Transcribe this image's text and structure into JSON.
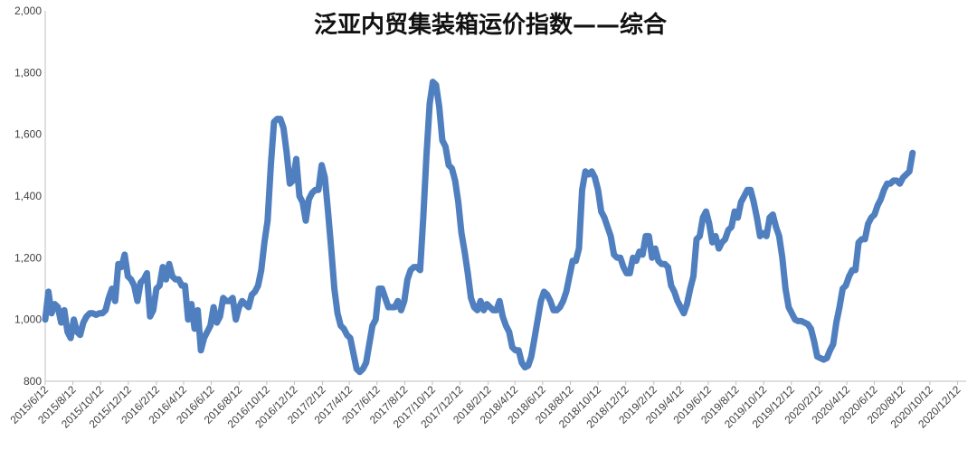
{
  "chart_data": {
    "type": "line",
    "title": "泛亚内贸集装箱运价指数——综合",
    "ylim": [
      800,
      2000
    ],
    "y_ticks": [
      "2,000",
      "1,800",
      "1,600",
      "1,400",
      "1,200",
      "1,000",
      "800"
    ],
    "y_tick_values": [
      2000,
      1800,
      1600,
      1400,
      1200,
      1000,
      800
    ],
    "x_tick_labels": [
      "2015/6/12",
      "2015/8/12",
      "2015/10/12",
      "2015/12/12",
      "2016/2/12",
      "2016/4/12",
      "2016/6/12",
      "2016/8/12",
      "2016/10/12",
      "2016/12/12",
      "2017/2/12",
      "2017/4/12",
      "2017/6/12",
      "2017/8/12",
      "2017/10/12",
      "2017/12/12",
      "2018/2/12",
      "2018/4/12",
      "2018/6/12",
      "2018/8/12",
      "2018/10/12",
      "2018/12/12",
      "2019/2/12",
      "2019/4/12",
      "2019/6/12",
      "2019/8/12",
      "2019/10/12",
      "2019/12/12",
      "2020/2/12",
      "2020/4/12",
      "2020/6/12",
      "2020/8/12",
      "2020/10/12",
      "2020/12/12"
    ],
    "x_start": "2015-06-12",
    "x_end": "2020-12-31",
    "grid": false,
    "legend": "none",
    "series": [
      {
        "color": "#4f7fbf",
        "points": [
          [
            "2015-06-12",
            1000
          ],
          [
            "2015-06-19",
            1090
          ],
          [
            "2015-06-26",
            1020
          ],
          [
            "2015-07-03",
            1050
          ],
          [
            "2015-07-10",
            1040
          ],
          [
            "2015-07-17",
            990
          ],
          [
            "2015-07-24",
            1030
          ],
          [
            "2015-07-31",
            960
          ],
          [
            "2015-08-07",
            940
          ],
          [
            "2015-08-14",
            1000
          ],
          [
            "2015-08-21",
            960
          ],
          [
            "2015-08-28",
            950
          ],
          [
            "2015-09-04",
            990
          ],
          [
            "2015-09-11",
            1010
          ],
          [
            "2015-09-18",
            1020
          ],
          [
            "2015-09-25",
            1020
          ],
          [
            "2015-10-02",
            1015
          ],
          [
            "2015-10-09",
            1020
          ],
          [
            "2015-10-16",
            1020
          ],
          [
            "2015-10-23",
            1030
          ],
          [
            "2015-10-30",
            1070
          ],
          [
            "2015-11-06",
            1100
          ],
          [
            "2015-11-13",
            1060
          ],
          [
            "2015-11-20",
            1180
          ],
          [
            "2015-11-27",
            1170
          ],
          [
            "2015-12-04",
            1210
          ],
          [
            "2015-12-11",
            1140
          ],
          [
            "2015-12-18",
            1130
          ],
          [
            "2015-12-25",
            1110
          ],
          [
            "2016-01-01",
            1060
          ],
          [
            "2016-01-08",
            1120
          ],
          [
            "2016-01-15",
            1130
          ],
          [
            "2016-01-22",
            1150
          ],
          [
            "2016-01-29",
            1010
          ],
          [
            "2016-02-05",
            1030
          ],
          [
            "2016-02-12",
            1100
          ],
          [
            "2016-02-19",
            1110
          ],
          [
            "2016-02-26",
            1170
          ],
          [
            "2016-03-04",
            1130
          ],
          [
            "2016-03-11",
            1180
          ],
          [
            "2016-03-18",
            1140
          ],
          [
            "2016-03-25",
            1130
          ],
          [
            "2016-04-01",
            1130
          ],
          [
            "2016-04-08",
            1110
          ],
          [
            "2016-04-15",
            1110
          ],
          [
            "2016-04-22",
            1000
          ],
          [
            "2016-04-29",
            1050
          ],
          [
            "2016-05-06",
            970
          ],
          [
            "2016-05-13",
            1030
          ],
          [
            "2016-05-20",
            900
          ],
          [
            "2016-05-27",
            940
          ],
          [
            "2016-06-03",
            960
          ],
          [
            "2016-06-10",
            980
          ],
          [
            "2016-06-17",
            1040
          ],
          [
            "2016-06-24",
            990
          ],
          [
            "2016-07-01",
            1010
          ],
          [
            "2016-07-08",
            1070
          ],
          [
            "2016-07-15",
            1060
          ],
          [
            "2016-07-22",
            1060
          ],
          [
            "2016-07-29",
            1070
          ],
          [
            "2016-08-05",
            1000
          ],
          [
            "2016-08-12",
            1040
          ],
          [
            "2016-08-19",
            1060
          ],
          [
            "2016-08-26",
            1050
          ],
          [
            "2016-09-02",
            1040
          ],
          [
            "2016-09-09",
            1080
          ],
          [
            "2016-09-16",
            1090
          ],
          [
            "2016-09-23",
            1110
          ],
          [
            "2016-09-30",
            1160
          ],
          [
            "2016-10-07",
            1250
          ],
          [
            "2016-10-14",
            1320
          ],
          [
            "2016-10-21",
            1500
          ],
          [
            "2016-10-28",
            1640
          ],
          [
            "2016-11-04",
            1650
          ],
          [
            "2016-11-11",
            1650
          ],
          [
            "2016-11-18",
            1620
          ],
          [
            "2016-11-25",
            1540
          ],
          [
            "2016-12-02",
            1440
          ],
          [
            "2016-12-09",
            1450
          ],
          [
            "2016-12-16",
            1520
          ],
          [
            "2016-12-23",
            1400
          ],
          [
            "2016-12-30",
            1380
          ],
          [
            "2017-01-06",
            1320
          ],
          [
            "2017-01-13",
            1390
          ],
          [
            "2017-01-20",
            1410
          ],
          [
            "2017-01-27",
            1420
          ],
          [
            "2017-02-03",
            1420
          ],
          [
            "2017-02-10",
            1500
          ],
          [
            "2017-02-17",
            1460
          ],
          [
            "2017-02-24",
            1350
          ],
          [
            "2017-03-03",
            1230
          ],
          [
            "2017-03-10",
            1100
          ],
          [
            "2017-03-17",
            1020
          ],
          [
            "2017-03-24",
            980
          ],
          [
            "2017-03-31",
            970
          ],
          [
            "2017-04-07",
            950
          ],
          [
            "2017-04-14",
            940
          ],
          [
            "2017-04-21",
            890
          ],
          [
            "2017-04-28",
            840
          ],
          [
            "2017-05-05",
            830
          ],
          [
            "2017-05-12",
            840
          ],
          [
            "2017-05-19",
            860
          ],
          [
            "2017-05-26",
            920
          ],
          [
            "2017-06-02",
            980
          ],
          [
            "2017-06-09",
            1000
          ],
          [
            "2017-06-16",
            1100
          ],
          [
            "2017-06-23",
            1100
          ],
          [
            "2017-06-30",
            1070
          ],
          [
            "2017-07-07",
            1040
          ],
          [
            "2017-07-14",
            1040
          ],
          [
            "2017-07-21",
            1040
          ],
          [
            "2017-07-28",
            1060
          ],
          [
            "2017-08-04",
            1030
          ],
          [
            "2017-08-11",
            1060
          ],
          [
            "2017-08-18",
            1130
          ],
          [
            "2017-08-25",
            1160
          ],
          [
            "2017-09-01",
            1170
          ],
          [
            "2017-09-08",
            1170
          ],
          [
            "2017-09-15",
            1160
          ],
          [
            "2017-09-22",
            1330
          ],
          [
            "2017-09-29",
            1530
          ],
          [
            "2017-10-06",
            1700
          ],
          [
            "2017-10-13",
            1770
          ],
          [
            "2017-10-20",
            1760
          ],
          [
            "2017-10-27",
            1690
          ],
          [
            "2017-11-03",
            1580
          ],
          [
            "2017-11-10",
            1560
          ],
          [
            "2017-11-17",
            1500
          ],
          [
            "2017-11-24",
            1490
          ],
          [
            "2017-12-01",
            1450
          ],
          [
            "2017-12-08",
            1380
          ],
          [
            "2017-12-15",
            1280
          ],
          [
            "2017-12-22",
            1220
          ],
          [
            "2017-12-29",
            1150
          ],
          [
            "2018-01-05",
            1070
          ],
          [
            "2018-01-12",
            1040
          ],
          [
            "2018-01-19",
            1030
          ],
          [
            "2018-01-26",
            1060
          ],
          [
            "2018-02-02",
            1030
          ],
          [
            "2018-02-09",
            1050
          ],
          [
            "2018-02-16",
            1040
          ],
          [
            "2018-02-23",
            1030
          ],
          [
            "2018-03-02",
            1030
          ],
          [
            "2018-03-09",
            1060
          ],
          [
            "2018-03-16",
            1010
          ],
          [
            "2018-03-23",
            980
          ],
          [
            "2018-03-30",
            960
          ],
          [
            "2018-04-06",
            910
          ],
          [
            "2018-04-13",
            900
          ],
          [
            "2018-04-20",
            900
          ],
          [
            "2018-04-27",
            860
          ],
          [
            "2018-05-04",
            845
          ],
          [
            "2018-05-11",
            850
          ],
          [
            "2018-05-18",
            880
          ],
          [
            "2018-05-25",
            940
          ],
          [
            "2018-06-01",
            1000
          ],
          [
            "2018-06-08",
            1060
          ],
          [
            "2018-06-15",
            1090
          ],
          [
            "2018-06-22",
            1080
          ],
          [
            "2018-06-29",
            1060
          ],
          [
            "2018-07-06",
            1030
          ],
          [
            "2018-07-13",
            1030
          ],
          [
            "2018-07-20",
            1040
          ],
          [
            "2018-07-27",
            1060
          ],
          [
            "2018-08-03",
            1090
          ],
          [
            "2018-08-10",
            1140
          ],
          [
            "2018-08-17",
            1190
          ],
          [
            "2018-08-24",
            1190
          ],
          [
            "2018-08-31",
            1230
          ],
          [
            "2018-09-07",
            1420
          ],
          [
            "2018-09-14",
            1480
          ],
          [
            "2018-09-21",
            1470
          ],
          [
            "2018-09-28",
            1480
          ],
          [
            "2018-10-05",
            1460
          ],
          [
            "2018-10-12",
            1420
          ],
          [
            "2018-10-19",
            1350
          ],
          [
            "2018-10-26",
            1330
          ],
          [
            "2018-11-02",
            1300
          ],
          [
            "2018-11-09",
            1270
          ],
          [
            "2018-11-16",
            1210
          ],
          [
            "2018-11-23",
            1200
          ],
          [
            "2018-11-30",
            1200
          ],
          [
            "2018-12-07",
            1170
          ],
          [
            "2018-12-14",
            1150
          ],
          [
            "2018-12-21",
            1150
          ],
          [
            "2018-12-28",
            1200
          ],
          [
            "2019-01-04",
            1190
          ],
          [
            "2019-01-11",
            1220
          ],
          [
            "2019-01-18",
            1210
          ],
          [
            "2019-01-25",
            1270
          ],
          [
            "2019-02-01",
            1270
          ],
          [
            "2019-02-08",
            1200
          ],
          [
            "2019-02-15",
            1230
          ],
          [
            "2019-02-22",
            1190
          ],
          [
            "2019-03-01",
            1180
          ],
          [
            "2019-03-08",
            1180
          ],
          [
            "2019-03-15",
            1170
          ],
          [
            "2019-03-22",
            1110
          ],
          [
            "2019-03-29",
            1090
          ],
          [
            "2019-04-05",
            1060
          ],
          [
            "2019-04-12",
            1040
          ],
          [
            "2019-04-19",
            1020
          ],
          [
            "2019-04-26",
            1050
          ],
          [
            "2019-05-03",
            1100
          ],
          [
            "2019-05-10",
            1140
          ],
          [
            "2019-05-17",
            1260
          ],
          [
            "2019-05-24",
            1270
          ],
          [
            "2019-05-31",
            1330
          ],
          [
            "2019-06-07",
            1350
          ],
          [
            "2019-06-14",
            1310
          ],
          [
            "2019-06-21",
            1250
          ],
          [
            "2019-06-28",
            1270
          ],
          [
            "2019-07-05",
            1230
          ],
          [
            "2019-07-12",
            1250
          ],
          [
            "2019-07-19",
            1260
          ],
          [
            "2019-07-26",
            1290
          ],
          [
            "2019-08-02",
            1300
          ],
          [
            "2019-08-09",
            1350
          ],
          [
            "2019-08-16",
            1330
          ],
          [
            "2019-08-23",
            1380
          ],
          [
            "2019-08-30",
            1400
          ],
          [
            "2019-09-06",
            1420
          ],
          [
            "2019-09-13",
            1420
          ],
          [
            "2019-09-20",
            1380
          ],
          [
            "2019-09-27",
            1330
          ],
          [
            "2019-10-04",
            1270
          ],
          [
            "2019-10-11",
            1280
          ],
          [
            "2019-10-18",
            1270
          ],
          [
            "2019-10-25",
            1330
          ],
          [
            "2019-11-01",
            1340
          ],
          [
            "2019-11-08",
            1300
          ],
          [
            "2019-11-15",
            1270
          ],
          [
            "2019-11-22",
            1200
          ],
          [
            "2019-11-29",
            1100
          ],
          [
            "2019-12-06",
            1040
          ],
          [
            "2019-12-13",
            1020
          ],
          [
            "2019-12-20",
            1000
          ],
          [
            "2019-12-27",
            995
          ],
          [
            "2020-01-03",
            995
          ],
          [
            "2020-01-10",
            990
          ],
          [
            "2020-01-17",
            985
          ],
          [
            "2020-01-24",
            970
          ],
          [
            "2020-01-31",
            930
          ],
          [
            "2020-02-07",
            880
          ],
          [
            "2020-02-14",
            875
          ],
          [
            "2020-02-21",
            870
          ],
          [
            "2020-02-28",
            875
          ],
          [
            "2020-03-06",
            900
          ],
          [
            "2020-03-13",
            920
          ],
          [
            "2020-03-20",
            990
          ],
          [
            "2020-03-27",
            1040
          ],
          [
            "2020-04-03",
            1100
          ],
          [
            "2020-04-10",
            1110
          ],
          [
            "2020-04-17",
            1140
          ],
          [
            "2020-04-24",
            1160
          ],
          [
            "2020-05-01",
            1160
          ],
          [
            "2020-05-08",
            1250
          ],
          [
            "2020-05-15",
            1260
          ],
          [
            "2020-05-22",
            1260
          ],
          [
            "2020-05-29",
            1310
          ],
          [
            "2020-06-05",
            1330
          ],
          [
            "2020-06-12",
            1340
          ],
          [
            "2020-06-19",
            1370
          ],
          [
            "2020-06-26",
            1390
          ],
          [
            "2020-07-03",
            1420
          ],
          [
            "2020-07-10",
            1440
          ],
          [
            "2020-07-17",
            1440
          ],
          [
            "2020-07-24",
            1450
          ],
          [
            "2020-07-31",
            1450
          ],
          [
            "2020-08-07",
            1440
          ],
          [
            "2020-08-14",
            1460
          ],
          [
            "2020-08-21",
            1470
          ],
          [
            "2020-08-28",
            1480
          ],
          [
            "2020-09-04",
            1540
          ]
        ]
      }
    ]
  }
}
